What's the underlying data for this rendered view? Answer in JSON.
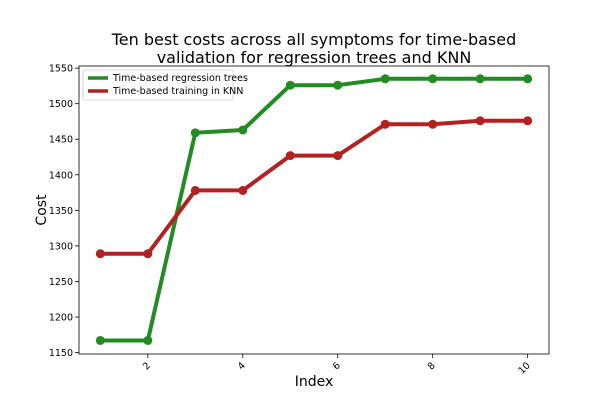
{
  "chart_data": {
    "type": "line",
    "title_line1": "Ten best costs across all symptoms for time-based",
    "title_line2": "validation for regression trees and KNN",
    "xlabel": "Index",
    "ylabel": "Cost",
    "xlim": [
      0.55,
      10.45
    ],
    "ylim": [
      1148,
      1553
    ],
    "xticks": [
      2,
      4,
      6,
      8,
      10
    ],
    "xtick_labels": [
      "2",
      "4",
      "6",
      "8",
      "10"
    ],
    "yticks": [
      1150,
      1200,
      1250,
      1300,
      1350,
      1400,
      1450,
      1500,
      1550
    ],
    "ytick_labels": [
      "1150",
      "1200",
      "1250",
      "1300",
      "1350",
      "1400",
      "1450",
      "1500",
      "1550"
    ],
    "grid": false,
    "legend_position": "top-left",
    "x": [
      1,
      2,
      3,
      4,
      5,
      6,
      7,
      8,
      9,
      10
    ],
    "series": [
      {
        "name": "Time-based regression trees",
        "color": "#228b22",
        "values": [
          1167,
          1167,
          1459,
          1463,
          1526,
          1526,
          1535,
          1535,
          1535,
          1535
        ]
      },
      {
        "name": "Time-based training in KNN",
        "color": "#b22222",
        "values": [
          1289,
          1289,
          1378,
          1378,
          1427,
          1427,
          1471,
          1471,
          1476,
          1476
        ]
      }
    ]
  }
}
